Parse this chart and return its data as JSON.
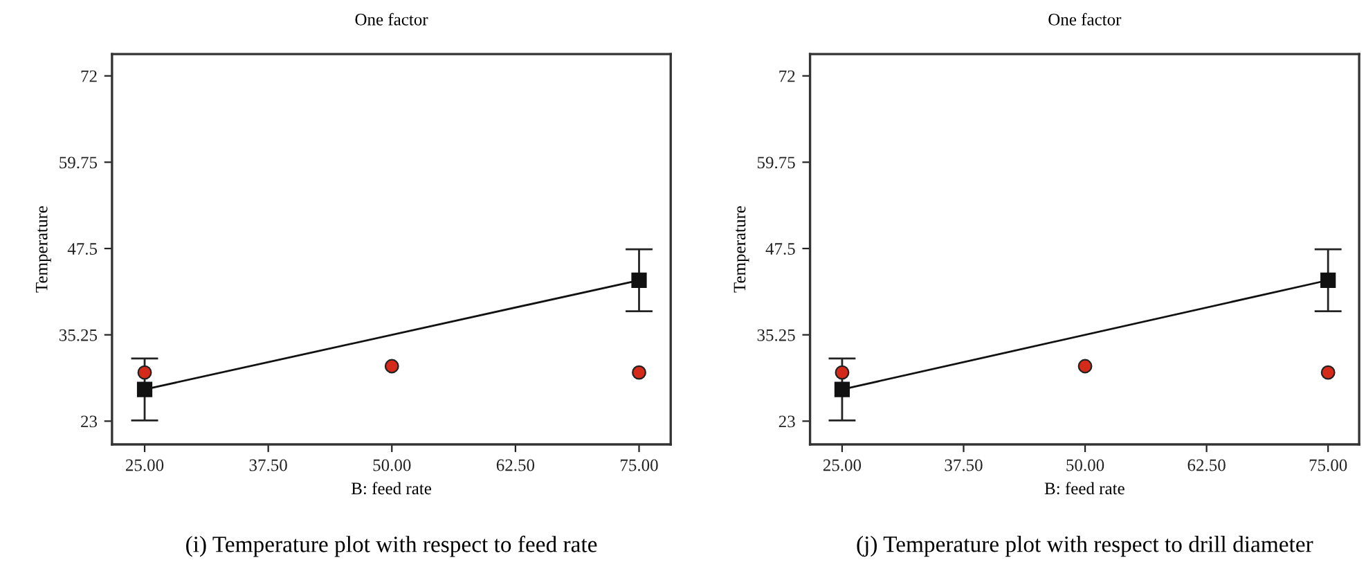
{
  "chart_data": [
    {
      "type": "line",
      "title": "One factor",
      "xlabel": "B: feed rate",
      "ylabel": "Temperature",
      "series": [
        {
          "color": "#111111",
          "x": [
            25,
            75
          ],
          "values": [
            27.5,
            43.0
          ],
          "errors": [
            4.4,
            4.4
          ],
          "marker": "square",
          "line_style": "solid"
        },
        {
          "type": "scatter",
          "color": "#d42a1a",
          "x": [
            25,
            50,
            75
          ],
          "values": [
            29.9,
            30.8,
            29.9
          ],
          "marker": "circle"
        }
      ],
      "xlim": [
        21.7,
        78.2
      ],
      "ylim": [
        19.7,
        75.1
      ],
      "xticks": [
        {
          "value": 25,
          "label": "25.00"
        },
        {
          "value": 37.5,
          "label": "37.50"
        },
        {
          "value": 50,
          "label": "50.00"
        },
        {
          "value": 62.5,
          "label": "62.50"
        },
        {
          "value": 75,
          "label": "75.00"
        }
      ],
      "yticks": [
        23,
        35.25,
        47.5,
        59.75,
        72
      ],
      "grid": false,
      "legend": false,
      "annotations": [
        "(i) Temperature plot with respect to feed rate"
      ]
    },
    {
      "type": "line",
      "title": "One factor",
      "xlabel": "B: feed rate",
      "ylabel": "Temperature",
      "series": [
        {
          "color": "#111111",
          "x": [
            25,
            75
          ],
          "values": [
            27.5,
            43.0
          ],
          "errors": [
            4.4,
            4.4
          ],
          "marker": "square",
          "line_style": "solid"
        },
        {
          "type": "scatter",
          "color": "#d42a1a",
          "x": [
            25,
            50,
            75
          ],
          "values": [
            29.9,
            30.8,
            29.9
          ],
          "marker": "circle"
        }
      ],
      "xlim": [
        21.7,
        78.2
      ],
      "ylim": [
        19.7,
        75.1
      ],
      "xticks": [
        {
          "value": 25,
          "label": "25.00"
        },
        {
          "value": 37.5,
          "label": "37.50"
        },
        {
          "value": 50,
          "label": "50.00"
        },
        {
          "value": 62.5,
          "label": "62.50"
        },
        {
          "value": 75,
          "label": "75.00"
        }
      ],
      "yticks": [
        23,
        35.25,
        47.5,
        59.75,
        72
      ],
      "grid": false,
      "legend": false,
      "annotations": [
        "(j) Temperature plot with respect to drill diameter"
      ]
    }
  ]
}
